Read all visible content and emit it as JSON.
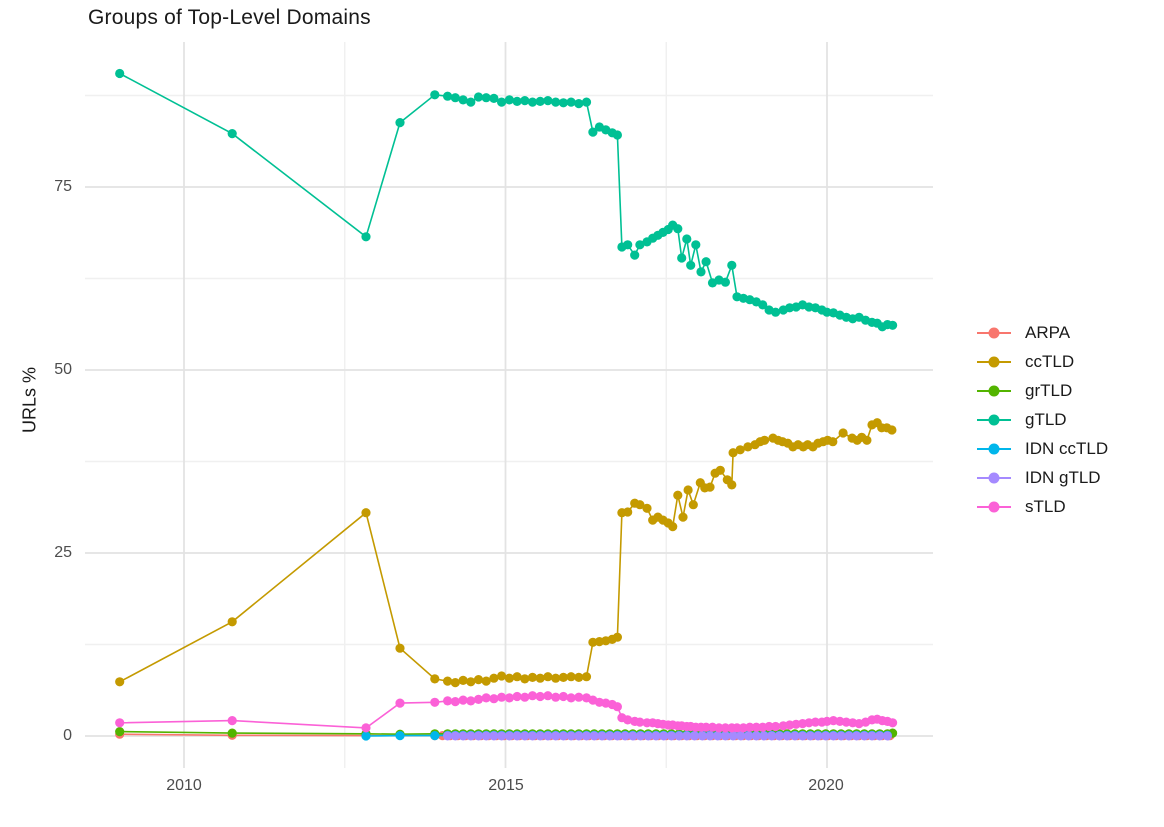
{
  "title": "Groups of Top-Level Domains",
  "axes": {
    "y": {
      "title": "URLs %",
      "ticks": [
        "0",
        "25",
        "50",
        "75"
      ],
      "tick_values": [
        0,
        25,
        50,
        75
      ],
      "minor_values": [
        12.5,
        37.5,
        62.5,
        87.5
      ]
    },
    "x": {
      "ticks": [
        "2010",
        "2015",
        "2020"
      ],
      "tick_values": [
        2010,
        2015,
        2020
      ],
      "minor_values": [
        2012.5,
        2017.5
      ]
    }
  },
  "legend": {
    "position": "right",
    "items": [
      {
        "label": "ARPA",
        "color": "#F8766D"
      },
      {
        "label": "ccTLD",
        "color": "#C49A00"
      },
      {
        "label": "grTLD",
        "color": "#53B400"
      },
      {
        "label": "gTLD",
        "color": "#00C094"
      },
      {
        "label": "IDN ccTLD",
        "color": "#00B6EB"
      },
      {
        "label": "IDN gTLD",
        "color": "#A58AFF"
      },
      {
        "label": "sTLD",
        "color": "#FB61D7"
      }
    ]
  },
  "chart_data": {
    "type": "line",
    "title": "Groups of Top-Level Domains",
    "xlabel": "",
    "ylabel": "URLs %",
    "x_range": [
      2008.5,
      2021.6
    ],
    "y_range": [
      -4.4,
      94.8
    ],
    "grid": true,
    "legend_position": "right",
    "marker": "point",
    "series": [
      {
        "name": "ARPA",
        "color": "#F8766D",
        "points": [
          [
            2009,
            0.25
          ],
          [
            2010.75,
            0.1
          ],
          [
            2012.83,
            0.06
          ]
        ],
        "flat_segments": [
          {
            "from": 2013.9,
            "to": 2021.02,
            "step": 0.12,
            "value": 0.05
          }
        ]
      },
      {
        "name": "ccTLD",
        "color": "#C49A00",
        "points": [
          [
            2009,
            7.4
          ],
          [
            2010.75,
            15.6
          ],
          [
            2012.83,
            30.5
          ],
          [
            2013.36,
            12.0
          ],
          [
            2013.9,
            7.8
          ],
          [
            2014.1,
            7.5
          ],
          [
            2014.22,
            7.3
          ],
          [
            2014.34,
            7.6
          ],
          [
            2014.46,
            7.4
          ],
          [
            2014.58,
            7.7
          ],
          [
            2014.7,
            7.5
          ],
          [
            2014.82,
            7.9
          ],
          [
            2014.94,
            8.2
          ],
          [
            2015.06,
            7.9
          ],
          [
            2015.18,
            8.1
          ],
          [
            2015.3,
            7.8
          ],
          [
            2015.42,
            8.0
          ],
          [
            2015.54,
            7.9
          ],
          [
            2015.66,
            8.1
          ],
          [
            2015.78,
            7.9
          ],
          [
            2015.9,
            8.0
          ],
          [
            2016.02,
            8.1
          ],
          [
            2016.14,
            8.0
          ],
          [
            2016.26,
            8.1
          ],
          [
            2016.36,
            12.8
          ],
          [
            2016.46,
            12.9
          ],
          [
            2016.56,
            13.0
          ],
          [
            2016.66,
            13.2
          ],
          [
            2016.74,
            13.5
          ],
          [
            2016.81,
            30.5
          ],
          [
            2016.9,
            30.6
          ],
          [
            2017.01,
            31.8
          ],
          [
            2017.09,
            31.6
          ],
          [
            2017.2,
            31.1
          ],
          [
            2017.29,
            29.5
          ],
          [
            2017.37,
            29.9
          ],
          [
            2017.45,
            29.5
          ],
          [
            2017.53,
            29.1
          ],
          [
            2017.6,
            28.6
          ],
          [
            2017.68,
            32.9
          ],
          [
            2017.76,
            29.9
          ],
          [
            2017.84,
            33.6
          ],
          [
            2017.92,
            31.6
          ],
          [
            2018.03,
            34.6
          ],
          [
            2018.1,
            33.9
          ],
          [
            2018.18,
            34.0
          ],
          [
            2018.26,
            35.9
          ],
          [
            2018.34,
            36.3
          ],
          [
            2018.45,
            35.0
          ],
          [
            2018.52,
            34.3
          ],
          [
            2018.54,
            38.7
          ],
          [
            2018.65,
            39.1
          ],
          [
            2018.77,
            39.5
          ],
          [
            2018.88,
            39.8
          ],
          [
            2018.96,
            40.2
          ],
          [
            2019.03,
            40.4
          ],
          [
            2019.16,
            40.7
          ],
          [
            2019.24,
            40.4
          ],
          [
            2019.31,
            40.2
          ],
          [
            2019.39,
            40.0
          ],
          [
            2019.47,
            39.5
          ],
          [
            2019.55,
            39.8
          ],
          [
            2019.63,
            39.5
          ],
          [
            2019.7,
            39.8
          ],
          [
            2019.78,
            39.5
          ],
          [
            2019.86,
            40.0
          ],
          [
            2019.94,
            40.2
          ],
          [
            2020.01,
            40.4
          ],
          [
            2020.09,
            40.2
          ],
          [
            2020.25,
            41.4
          ],
          [
            2020.39,
            40.7
          ],
          [
            2020.47,
            40.4
          ],
          [
            2020.54,
            40.8
          ],
          [
            2020.62,
            40.4
          ],
          [
            2020.7,
            42.5
          ],
          [
            2020.78,
            42.8
          ],
          [
            2020.85,
            42.1
          ],
          [
            2020.93,
            42.1
          ],
          [
            2021.01,
            41.8
          ]
        ]
      },
      {
        "name": "grTLD",
        "color": "#53B400",
        "points": [
          [
            2009,
            0.6
          ],
          [
            2010.75,
            0.4
          ],
          [
            2012.83,
            0.3
          ],
          [
            2013.36,
            0.25
          ],
          [
            2013.9,
            0.3
          ],
          [
            2021.02,
            0.4
          ]
        ],
        "flat_segments": [
          {
            "from": 2014.1,
            "to": 2020.94,
            "step": 0.12,
            "value": 0.3
          }
        ]
      },
      {
        "name": "gTLD",
        "color": "#00C094",
        "points": [
          [
            2009,
            90.5
          ],
          [
            2010.75,
            82.3
          ],
          [
            2012.83,
            68.2
          ],
          [
            2013.36,
            83.8
          ],
          [
            2013.9,
            87.6
          ],
          [
            2014.1,
            87.4
          ],
          [
            2014.22,
            87.2
          ],
          [
            2014.34,
            86.9
          ],
          [
            2014.46,
            86.6
          ],
          [
            2014.58,
            87.3
          ],
          [
            2014.7,
            87.2
          ],
          [
            2014.82,
            87.1
          ],
          [
            2014.94,
            86.6
          ],
          [
            2015.06,
            86.9
          ],
          [
            2015.18,
            86.7
          ],
          [
            2015.3,
            86.8
          ],
          [
            2015.42,
            86.6
          ],
          [
            2015.54,
            86.7
          ],
          [
            2015.66,
            86.8
          ],
          [
            2015.78,
            86.6
          ],
          [
            2015.9,
            86.5
          ],
          [
            2016.02,
            86.6
          ],
          [
            2016.14,
            86.4
          ],
          [
            2016.26,
            86.6
          ],
          [
            2016.36,
            82.5
          ],
          [
            2016.46,
            83.2
          ],
          [
            2016.56,
            82.8
          ],
          [
            2016.66,
            82.4
          ],
          [
            2016.74,
            82.1
          ],
          [
            2016.81,
            66.8
          ],
          [
            2016.9,
            67.1
          ],
          [
            2017.01,
            65.7
          ],
          [
            2017.09,
            67.1
          ],
          [
            2017.2,
            67.5
          ],
          [
            2017.29,
            68.0
          ],
          [
            2017.37,
            68.4
          ],
          [
            2017.45,
            68.8
          ],
          [
            2017.53,
            69.2
          ],
          [
            2017.6,
            69.8
          ],
          [
            2017.68,
            69.3
          ],
          [
            2017.74,
            65.3
          ],
          [
            2017.82,
            67.9
          ],
          [
            2017.88,
            64.3
          ],
          [
            2017.96,
            67.1
          ],
          [
            2018.04,
            63.4
          ],
          [
            2018.12,
            64.8
          ],
          [
            2018.22,
            61.9
          ],
          [
            2018.32,
            62.3
          ],
          [
            2018.42,
            62.0
          ],
          [
            2018.52,
            64.3
          ],
          [
            2018.6,
            60.0
          ],
          [
            2018.7,
            59.8
          ],
          [
            2018.8,
            59.6
          ],
          [
            2018.9,
            59.3
          ],
          [
            2019.0,
            58.9
          ],
          [
            2019.1,
            58.2
          ],
          [
            2019.2,
            57.9
          ],
          [
            2019.32,
            58.2
          ],
          [
            2019.42,
            58.5
          ],
          [
            2019.52,
            58.6
          ],
          [
            2019.62,
            58.9
          ],
          [
            2019.72,
            58.6
          ],
          [
            2019.82,
            58.5
          ],
          [
            2019.92,
            58.2
          ],
          [
            2020.0,
            57.9
          ],
          [
            2020.1,
            57.8
          ],
          [
            2020.2,
            57.5
          ],
          [
            2020.3,
            57.2
          ],
          [
            2020.4,
            57.0
          ],
          [
            2020.5,
            57.2
          ],
          [
            2020.6,
            56.8
          ],
          [
            2020.7,
            56.5
          ],
          [
            2020.78,
            56.4
          ],
          [
            2020.86,
            55.9
          ],
          [
            2020.94,
            56.2
          ],
          [
            2021.02,
            56.1
          ]
        ]
      },
      {
        "name": "IDN ccTLD",
        "color": "#00B6EB",
        "points": [
          [
            2012.83,
            0.0
          ],
          [
            2013.36,
            0.05
          ],
          [
            2013.9,
            0.05
          ]
        ],
        "flat_segments": [
          {
            "from": 2014.1,
            "to": 2021.02,
            "step": 0.12,
            "value": 0.1
          }
        ]
      },
      {
        "name": "IDN gTLD",
        "color": "#A58AFF",
        "points": [],
        "flat_segments": [
          {
            "from": 2014.1,
            "to": 2021.02,
            "step": 0.12,
            "value": 0.02
          }
        ]
      },
      {
        "name": "sTLD",
        "color": "#FB61D7",
        "points": [
          [
            2009,
            1.8
          ],
          [
            2010.75,
            2.1
          ],
          [
            2012.83,
            1.1
          ],
          [
            2013.36,
            4.5
          ],
          [
            2013.9,
            4.6
          ],
          [
            2014.1,
            4.8
          ],
          [
            2014.22,
            4.7
          ],
          [
            2014.34,
            4.9
          ],
          [
            2014.46,
            4.8
          ],
          [
            2014.58,
            5.0
          ],
          [
            2014.7,
            5.2
          ],
          [
            2014.82,
            5.1
          ],
          [
            2014.94,
            5.3
          ],
          [
            2015.06,
            5.2
          ],
          [
            2015.18,
            5.4
          ],
          [
            2015.3,
            5.3
          ],
          [
            2015.42,
            5.5
          ],
          [
            2015.54,
            5.4
          ],
          [
            2015.66,
            5.5
          ],
          [
            2015.78,
            5.3
          ],
          [
            2015.9,
            5.4
          ],
          [
            2016.02,
            5.2
          ],
          [
            2016.14,
            5.3
          ],
          [
            2016.26,
            5.2
          ],
          [
            2016.36,
            4.9
          ],
          [
            2016.46,
            4.6
          ],
          [
            2016.56,
            4.5
          ],
          [
            2016.66,
            4.3
          ],
          [
            2016.74,
            4.0
          ],
          [
            2016.81,
            2.5
          ],
          [
            2016.9,
            2.2
          ],
          [
            2017.01,
            2.0
          ],
          [
            2017.09,
            1.9
          ],
          [
            2017.2,
            1.8
          ],
          [
            2017.29,
            1.8
          ],
          [
            2017.37,
            1.7
          ],
          [
            2017.45,
            1.6
          ],
          [
            2017.53,
            1.5
          ],
          [
            2017.6,
            1.5
          ],
          [
            2017.68,
            1.4
          ],
          [
            2017.74,
            1.4
          ],
          [
            2017.82,
            1.3
          ],
          [
            2017.88,
            1.3
          ],
          [
            2017.96,
            1.2
          ],
          [
            2018.04,
            1.2
          ],
          [
            2018.12,
            1.2
          ],
          [
            2018.22,
            1.2
          ],
          [
            2018.32,
            1.1
          ],
          [
            2018.42,
            1.1
          ],
          [
            2018.52,
            1.1
          ],
          [
            2018.6,
            1.1
          ],
          [
            2018.7,
            1.1
          ],
          [
            2018.8,
            1.2
          ],
          [
            2018.9,
            1.2
          ],
          [
            2019.0,
            1.2
          ],
          [
            2019.1,
            1.3
          ],
          [
            2019.2,
            1.3
          ],
          [
            2019.32,
            1.4
          ],
          [
            2019.42,
            1.5
          ],
          [
            2019.52,
            1.6
          ],
          [
            2019.62,
            1.7
          ],
          [
            2019.72,
            1.8
          ],
          [
            2019.82,
            1.9
          ],
          [
            2019.92,
            1.9
          ],
          [
            2020.0,
            2.0
          ],
          [
            2020.1,
            2.1
          ],
          [
            2020.2,
            2.0
          ],
          [
            2020.3,
            1.9
          ],
          [
            2020.4,
            1.8
          ],
          [
            2020.5,
            1.7
          ],
          [
            2020.6,
            1.9
          ],
          [
            2020.7,
            2.2
          ],
          [
            2020.78,
            2.3
          ],
          [
            2020.86,
            2.1
          ],
          [
            2020.94,
            2.0
          ],
          [
            2021.02,
            1.8
          ]
        ]
      }
    ]
  }
}
